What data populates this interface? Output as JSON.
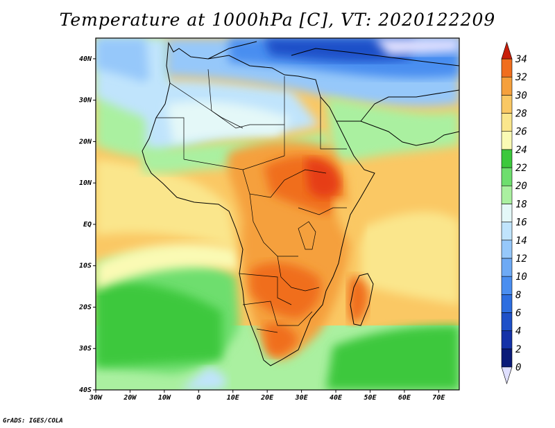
{
  "title": "Temperature at 1000hPa [C], VT: 2020122209",
  "credit": "GrADS: IGES/COLA",
  "map": {
    "lon_range": [
      -30,
      76
    ],
    "lat_range": [
      -40,
      45
    ],
    "lon_ticks": [
      {
        "value": -30,
        "label": "30W"
      },
      {
        "value": -20,
        "label": "20W"
      },
      {
        "value": -10,
        "label": "10W"
      },
      {
        "value": 0,
        "label": "0"
      },
      {
        "value": 10,
        "label": "10E"
      },
      {
        "value": 20,
        "label": "20E"
      },
      {
        "value": 30,
        "label": "30E"
      },
      {
        "value": 40,
        "label": "40E"
      },
      {
        "value": 50,
        "label": "50E"
      },
      {
        "value": 60,
        "label": "60E"
      },
      {
        "value": 70,
        "label": "70E"
      }
    ],
    "lat_ticks": [
      {
        "value": 40,
        "label": "40N"
      },
      {
        "value": 30,
        "label": "30N"
      },
      {
        "value": 20,
        "label": "20N"
      },
      {
        "value": 10,
        "label": "10N"
      },
      {
        "value": 0,
        "label": "EQ"
      },
      {
        "value": -10,
        "label": "10S"
      },
      {
        "value": -20,
        "label": "20S"
      },
      {
        "value": -30,
        "label": "30S"
      },
      {
        "value": -40,
        "label": "40S"
      }
    ]
  },
  "colorbar": {
    "levels": [
      0,
      2,
      4,
      6,
      8,
      10,
      12,
      14,
      16,
      18,
      20,
      22,
      24,
      26,
      28,
      30,
      32,
      34
    ],
    "colors": [
      "#0a1a78",
      "#1432a8",
      "#1e50c8",
      "#2d6ee0",
      "#4a8ef0",
      "#6eaaf5",
      "#96c8fa",
      "#c0e4fc",
      "#e4f8f8",
      "#aaf0a0",
      "#6ede6e",
      "#3cc83c",
      "#fafab4",
      "#fae68c",
      "#fac864",
      "#f5a03c",
      "#f06e1e",
      "#e63c14",
      "#c81e0a"
    ],
    "under_color": "#e0e0ff",
    "over_color": "#c81e0a"
  }
}
